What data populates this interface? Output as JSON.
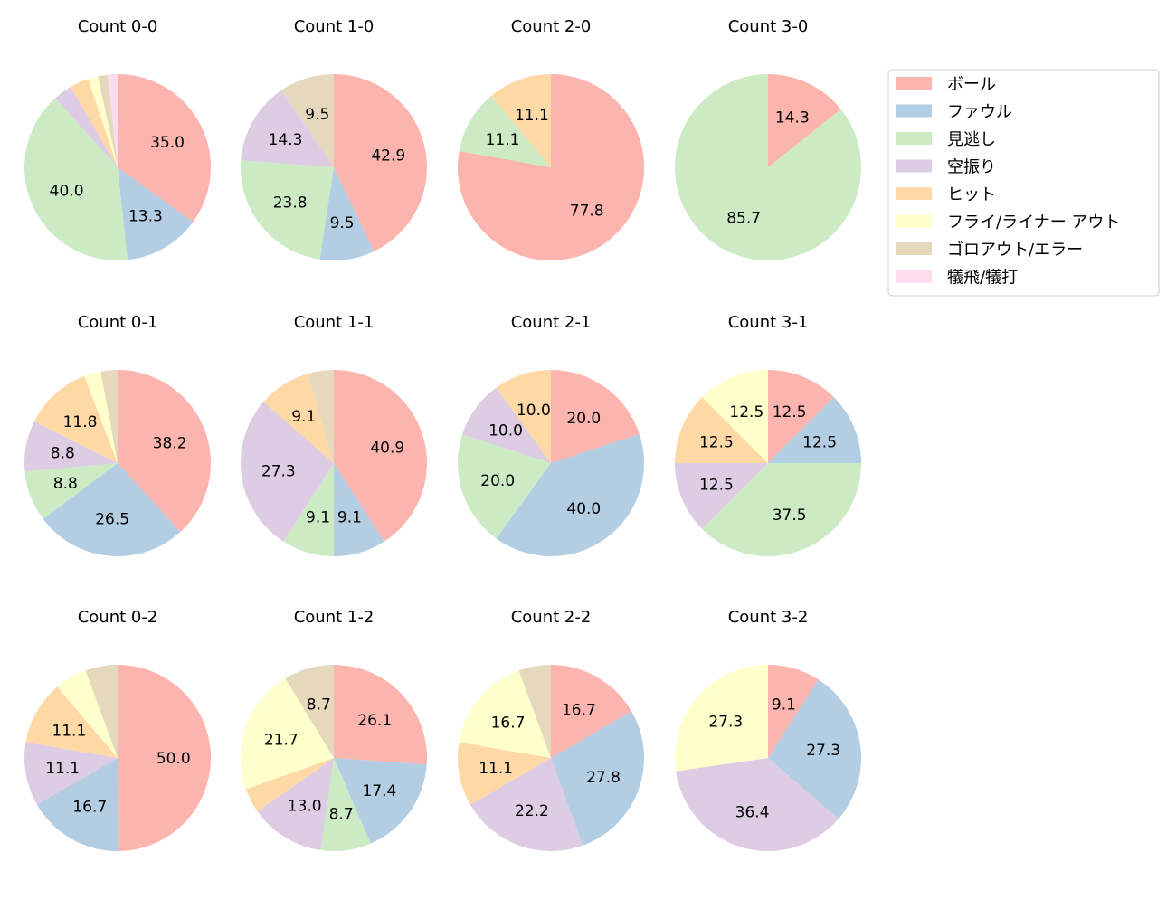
{
  "chart_data": {
    "type": "pie",
    "legend": {
      "placement": "right",
      "entries": [
        "ボール",
        "ファウル",
        "見逃し",
        "空振り",
        "ヒット",
        "フライ/ライナー アウト",
        "ゴロアウト/エラー",
        "犠飛/犠打"
      ]
    },
    "colors": [
      "#fbb4ae",
      "#b3cde3",
      "#ccebc5",
      "#decbe4",
      "#fed9a6",
      "#ffffcc",
      "#e5d8bd",
      "#fddaec"
    ],
    "start_angle_deg": 90,
    "direction": "clockwise",
    "charts": [
      {
        "title": "Count 0-0",
        "values": [
          35.0,
          13.3,
          40.0,
          3.3,
          3.3,
          1.7,
          1.7,
          1.7
        ]
      },
      {
        "title": "Count 1-0",
        "values": [
          42.9,
          9.5,
          23.8,
          14.3,
          0,
          0,
          9.5,
          0
        ]
      },
      {
        "title": "Count 2-0",
        "values": [
          77.8,
          0,
          11.1,
          0,
          11.1,
          0,
          0,
          0
        ]
      },
      {
        "title": "Count 3-0",
        "values": [
          14.3,
          0,
          85.7,
          0,
          0,
          0,
          0,
          0
        ]
      },
      {
        "title": "Count 0-1",
        "values": [
          38.2,
          26.5,
          8.8,
          8.8,
          11.8,
          2.9,
          2.9,
          0
        ]
      },
      {
        "title": "Count 1-1",
        "values": [
          40.9,
          9.1,
          9.1,
          27.3,
          9.1,
          0,
          4.5,
          0
        ]
      },
      {
        "title": "Count 2-1",
        "values": [
          20.0,
          40.0,
          20.0,
          10.0,
          10.0,
          0,
          0,
          0
        ]
      },
      {
        "title": "Count 3-1",
        "values": [
          12.5,
          12.5,
          37.5,
          12.5,
          12.5,
          12.5,
          0,
          0
        ]
      },
      {
        "title": "Count 0-2",
        "values": [
          50.0,
          16.7,
          0,
          11.1,
          11.1,
          5.6,
          5.6,
          0
        ]
      },
      {
        "title": "Count 1-2",
        "values": [
          26.1,
          17.4,
          8.7,
          13.0,
          4.3,
          21.7,
          8.7,
          0
        ]
      },
      {
        "title": "Count 2-2",
        "values": [
          16.7,
          27.8,
          0,
          22.2,
          11.1,
          16.7,
          5.6,
          0
        ]
      },
      {
        "title": "Count 3-2",
        "values": [
          9.1,
          27.3,
          0,
          36.4,
          0,
          27.3,
          0,
          0
        ]
      }
    ]
  }
}
